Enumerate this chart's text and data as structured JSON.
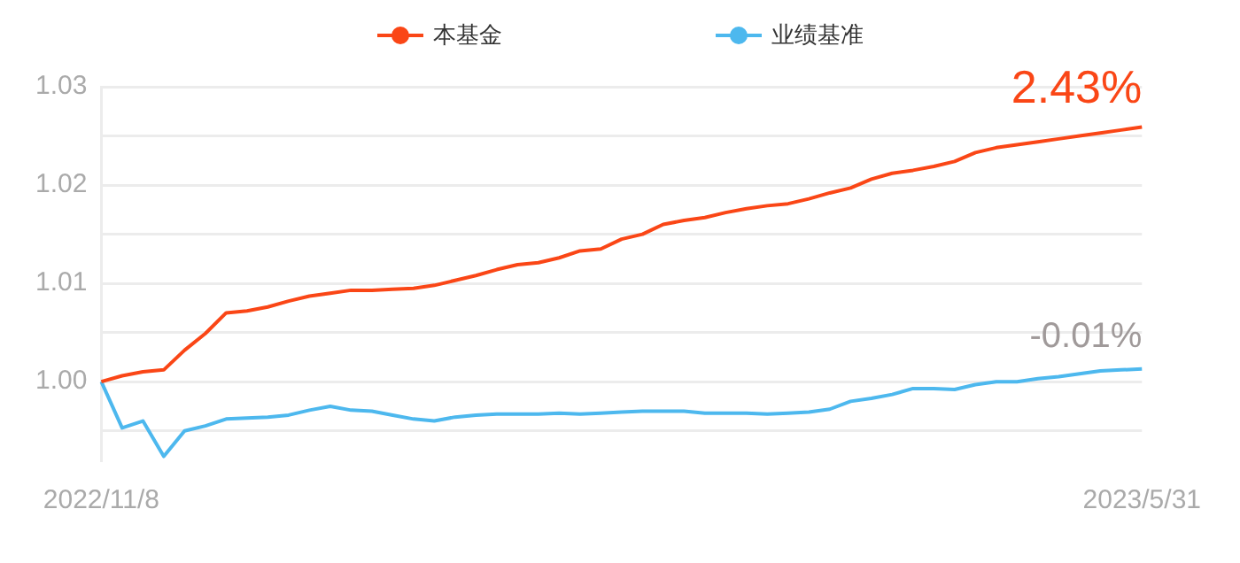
{
  "chart_data": {
    "type": "line",
    "categories": [
      "2022/11/8",
      null,
      null,
      null,
      null,
      null,
      null,
      null,
      null,
      null,
      null,
      null,
      null,
      null,
      null,
      null,
      null,
      null,
      null,
      null,
      null,
      null,
      null,
      null,
      null,
      null,
      null,
      null,
      null,
      null,
      null,
      null,
      null,
      null,
      null,
      null,
      null,
      null,
      null,
      null,
      null,
      null,
      null,
      null,
      null,
      null,
      null,
      null,
      null,
      null,
      "2023/5/31"
    ],
    "series": [
      {
        "name": "本基金",
        "color": "#fa4616",
        "values": [
          1.0,
          1.0006,
          1.001,
          1.0012,
          1.0032,
          1.0049,
          1.007,
          1.0072,
          1.0076,
          1.0082,
          1.0087,
          1.009,
          1.0093,
          1.0093,
          1.0094,
          1.0095,
          1.0098,
          1.0103,
          1.0108,
          1.0114,
          1.0119,
          1.0121,
          1.0126,
          1.0133,
          1.0135,
          1.0145,
          1.015,
          1.016,
          1.0164,
          1.0167,
          1.0172,
          1.0176,
          1.0179,
          1.0181,
          1.0186,
          1.0192,
          1.0197,
          1.0206,
          1.0212,
          1.0215,
          1.0219,
          1.0224,
          1.0233,
          1.0238,
          1.0241,
          1.0244,
          1.0247,
          1.025,
          1.0253,
          1.0256,
          1.0259
        ]
      },
      {
        "name": "业绩基准",
        "color": "#4db8ee",
        "values": [
          1.0,
          0.9953,
          0.996,
          0.9924,
          0.995,
          0.9955,
          0.9962,
          0.9963,
          0.9964,
          0.9966,
          0.9971,
          0.9975,
          0.9971,
          0.997,
          0.9966,
          0.9962,
          0.996,
          0.9964,
          0.9966,
          0.9967,
          0.9967,
          0.9967,
          0.9968,
          0.9967,
          0.9968,
          0.9969,
          0.997,
          0.997,
          0.997,
          0.9968,
          0.9968,
          0.9968,
          0.9967,
          0.9968,
          0.9969,
          0.9972,
          0.998,
          0.9983,
          0.9987,
          0.9993,
          0.9993,
          0.9992,
          0.9997,
          1.0,
          1.0,
          1.0003,
          1.0005,
          1.0008,
          1.0011,
          1.0012,
          1.0013
        ]
      }
    ],
    "ylim": [
      0.992,
      1.03
    ],
    "yticks": [
      {
        "value": 0.995,
        "label": null
      },
      {
        "value": 1,
        "label": "1.00"
      },
      {
        "value": 1.005,
        "label": null
      },
      {
        "value": 1.01,
        "label": "1.01"
      },
      {
        "value": 1.015,
        "label": null
      },
      {
        "value": 1.02,
        "label": "1.02"
      },
      {
        "value": 1.025,
        "label": null
      },
      {
        "value": 1.03,
        "label": "1.03"
      }
    ],
    "grid": "y",
    "legend": "top",
    "marker": "none",
    "line_style": "solid",
    "annotations": [
      {
        "text": "2.43%",
        "x": "2023/5/31",
        "y": 1.0259
      },
      {
        "text": "-0.01%",
        "x": "2023/5/31",
        "y": 1.0013
      }
    ]
  }
}
